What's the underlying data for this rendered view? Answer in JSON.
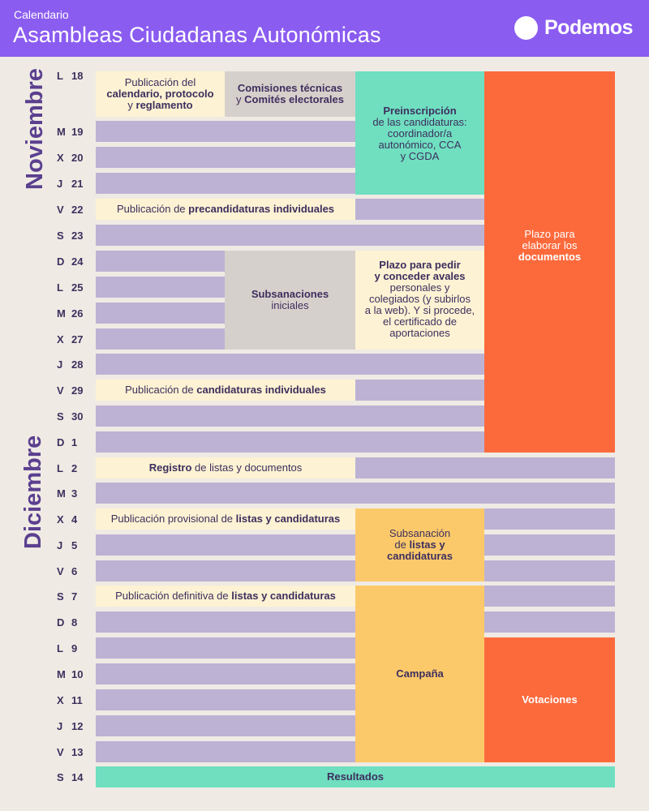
{
  "header": {
    "subtitle": "Calendario",
    "title": "Asambleas Ciudadanas Autonómicas",
    "brand": "Podemos"
  },
  "months": {
    "november": "Noviembre",
    "december": "Diciembre"
  },
  "days": [
    {
      "letter": "L",
      "num": "18"
    },
    {
      "letter": "M",
      "num": "19"
    },
    {
      "letter": "X",
      "num": "20"
    },
    {
      "letter": "J",
      "num": "21"
    },
    {
      "letter": "V",
      "num": "22"
    },
    {
      "letter": "S",
      "num": "23"
    },
    {
      "letter": "D",
      "num": "24"
    },
    {
      "letter": "L",
      "num": "25"
    },
    {
      "letter": "M",
      "num": "26"
    },
    {
      "letter": "X",
      "num": "27"
    },
    {
      "letter": "J",
      "num": "28"
    },
    {
      "letter": "V",
      "num": "29"
    },
    {
      "letter": "S",
      "num": "30"
    },
    {
      "letter": "D",
      "num": "1"
    },
    {
      "letter": "L",
      "num": "2"
    },
    {
      "letter": "M",
      "num": "3"
    },
    {
      "letter": "X",
      "num": "4"
    },
    {
      "letter": "J",
      "num": "5"
    },
    {
      "letter": "V",
      "num": "6"
    },
    {
      "letter": "S",
      "num": "7"
    },
    {
      "letter": "D",
      "num": "8"
    },
    {
      "letter": "L",
      "num": "9"
    },
    {
      "letter": "M",
      "num": "10"
    },
    {
      "letter": "X",
      "num": "11"
    },
    {
      "letter": "J",
      "num": "12"
    },
    {
      "letter": "V",
      "num": "13"
    },
    {
      "letter": "S",
      "num": "14"
    }
  ],
  "events": {
    "publicacion_calendario": {
      "l1": "Publicación del",
      "l2b": "calendario, protocolo",
      "l3a": "y ",
      "l3b": "reglamento"
    },
    "comisiones": {
      "l1b": "Comisiones técnicas",
      "l2a": "y ",
      "l2b": "Comités electorales"
    },
    "preinscripcion": {
      "l1b": "Preinscripción",
      "l2": "de las candidaturas:",
      "l3": "coordinador/a",
      "l4": "autonómico, CCA",
      "l5": "y CGDA"
    },
    "plazo_documentos": {
      "l1": "Plazo para",
      "l2": "elaborar los",
      "l3b": "documentos"
    },
    "precandidaturas": {
      "a": "Publicación de ",
      "b": "precandidaturas individuales"
    },
    "subsanaciones": {
      "l1b": "Subsanaciones",
      "l2": "iniciales"
    },
    "avales": {
      "l1b": "Plazo para pedir",
      "l2b": "y conceder avales",
      "l3": "personales y",
      "l4": "colegiados (y subirlos",
      "l5": "a la web). Y si procede,",
      "l6": "el certificado de",
      "l7": "aportaciones"
    },
    "candidaturas": {
      "a": "Publicación de ",
      "b": "candidaturas individuales"
    },
    "registro": {
      "b": "Registro",
      "a": " de listas y documentos"
    },
    "provisional": {
      "a": "Publicación provisional de ",
      "b": "listas y candidaturas"
    },
    "subsanacion_listas": {
      "l1": "Subsanación",
      "l2a": "de ",
      "l2b": "listas y",
      "l3b": "candidaturas"
    },
    "definitiva": {
      "a": "Publicación definitiva de ",
      "b": "listas y candidaturas"
    },
    "campana": {
      "label": "Campaña"
    },
    "votaciones": {
      "label": "Votaciones"
    },
    "resultados": {
      "label": "Resultados"
    }
  }
}
